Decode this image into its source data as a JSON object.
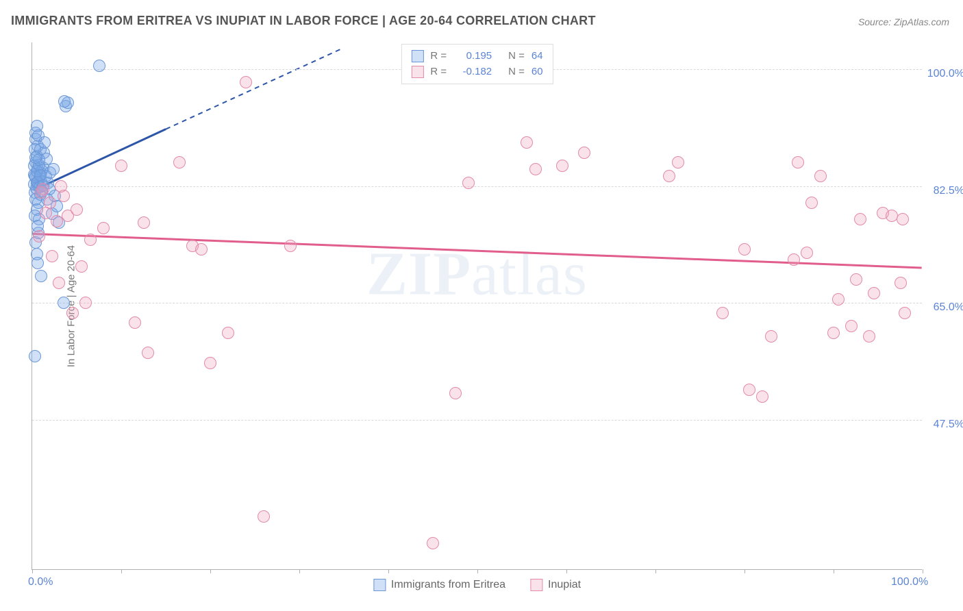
{
  "title": "IMMIGRANTS FROM ERITREA VS INUPIAT IN LABOR FORCE | AGE 20-64 CORRELATION CHART",
  "source": "Source: ZipAtlas.com",
  "y_axis_label": "In Labor Force | Age 20-64",
  "watermark_bold": "ZIP",
  "watermark_rest": "atlas",
  "chart": {
    "type": "scatter",
    "x_domain": [
      0,
      100
    ],
    "y_domain": [
      25,
      104
    ],
    "x_ticks": [
      0,
      10,
      20,
      30,
      40,
      50,
      60,
      70,
      80,
      90,
      100
    ],
    "x_tick_labels": {
      "0": "0.0%",
      "100": "100.0%"
    },
    "y_grid": [
      47.5,
      65.0,
      82.5,
      100.0
    ],
    "y_tick_labels": [
      "47.5%",
      "65.0%",
      "82.5%",
      "100.0%"
    ],
    "background": "#ffffff",
    "grid_color": "#d9d9d9",
    "axis_color": "#b0b0b0",
    "tick_label_color": "#5b84d6",
    "marker_radius": 9,
    "series": [
      {
        "name": "Immigrants from Eritrea",
        "fill": "rgba(120,165,230,0.35)",
        "stroke": "#6a97d8",
        "r_label": "R =",
        "r_value": "0.195",
        "n_label": "N =",
        "n_value": "64",
        "trend": {
          "x1": 0.4,
          "y1": 82,
          "x2": 15,
          "y2": 91,
          "extend_x2": 35,
          "extend_y2": 103.2,
          "color": "#2d56a8",
          "width": 3
        },
        "points": [
          {
            "x": 0.3,
            "y": 84
          },
          {
            "x": 0.5,
            "y": 83
          },
          {
            "x": 0.6,
            "y": 85
          },
          {
            "x": 0.8,
            "y": 83.5
          },
          {
            "x": 0.4,
            "y": 86
          },
          {
            "x": 0.7,
            "y": 82.5
          },
          {
            "x": 0.9,
            "y": 84.5
          },
          {
            "x": 1.0,
            "y": 83.2
          },
          {
            "x": 1.2,
            "y": 85.2
          },
          {
            "x": 0.3,
            "y": 81.5
          },
          {
            "x": 0.5,
            "y": 87
          },
          {
            "x": 0.6,
            "y": 88.5
          },
          {
            "x": 0.4,
            "y": 89.5
          },
          {
            "x": 0.7,
            "y": 80
          },
          {
            "x": 0.9,
            "y": 81.2
          },
          {
            "x": 0.5,
            "y": 79
          },
          {
            "x": 0.4,
            "y": 90.5
          },
          {
            "x": 0.2,
            "y": 85.5
          },
          {
            "x": 0.3,
            "y": 78
          },
          {
            "x": 0.8,
            "y": 77.5
          },
          {
            "x": 1.1,
            "y": 84.8
          },
          {
            "x": 0.2,
            "y": 82.8
          },
          {
            "x": 1.5,
            "y": 84
          },
          {
            "x": 1.8,
            "y": 83
          },
          {
            "x": 2.0,
            "y": 84.5
          },
          {
            "x": 2.2,
            "y": 78.3
          },
          {
            "x": 2.5,
            "y": 81
          },
          {
            "x": 0.5,
            "y": 72.3
          },
          {
            "x": 0.6,
            "y": 71
          },
          {
            "x": 1.0,
            "y": 69
          },
          {
            "x": 2.8,
            "y": 79.5
          },
          {
            "x": 3.0,
            "y": 77
          },
          {
            "x": 3.5,
            "y": 65
          },
          {
            "x": 0.3,
            "y": 57
          },
          {
            "x": 0.4,
            "y": 74
          },
          {
            "x": 0.7,
            "y": 75.5
          },
          {
            "x": 3.8,
            "y": 94.5
          },
          {
            "x": 4.0,
            "y": 95
          },
          {
            "x": 3.6,
            "y": 95.2
          },
          {
            "x": 7.5,
            "y": 100.5
          },
          {
            "x": 0.25,
            "y": 84.2
          },
          {
            "x": 0.35,
            "y": 83.8
          },
          {
            "x": 0.45,
            "y": 82.1
          },
          {
            "x": 0.55,
            "y": 84.7
          },
          {
            "x": 0.65,
            "y": 83.1
          },
          {
            "x": 0.75,
            "y": 85.6
          },
          {
            "x": 0.85,
            "y": 82.4
          },
          {
            "x": 0.95,
            "y": 84.1
          },
          {
            "x": 1.3,
            "y": 87.5
          },
          {
            "x": 1.6,
            "y": 86.6
          },
          {
            "x": 1.9,
            "y": 82
          },
          {
            "x": 0.5,
            "y": 91.5
          },
          {
            "x": 0.7,
            "y": 90
          },
          {
            "x": 0.3,
            "y": 88
          },
          {
            "x": 0.9,
            "y": 88
          },
          {
            "x": 1.4,
            "y": 89
          },
          {
            "x": 1.7,
            "y": 80.5
          },
          {
            "x": 2.4,
            "y": 85
          },
          {
            "x": 0.4,
            "y": 80.5
          },
          {
            "x": 0.6,
            "y": 76.5
          },
          {
            "x": 0.8,
            "y": 86.5
          },
          {
            "x": 1.05,
            "y": 81.7
          },
          {
            "x": 1.25,
            "y": 82.6
          },
          {
            "x": 0.35,
            "y": 86.8
          }
        ]
      },
      {
        "name": "Inupiat",
        "fill": "rgba(240,160,190,0.30)",
        "stroke": "#e28aa9",
        "r_label": "R =",
        "r_value": "-0.182",
        "n_label": "N =",
        "n_value": "60",
        "trend": {
          "x1": 0,
          "y1": 75.3,
          "x2": 100,
          "y2": 70.2,
          "color": "#e15d8b",
          "width": 3
        },
        "points": [
          {
            "x": 1.2,
            "y": 82
          },
          {
            "x": 2,
            "y": 80
          },
          {
            "x": 3.5,
            "y": 81
          },
          {
            "x": 5,
            "y": 79
          },
          {
            "x": 6.5,
            "y": 74.5
          },
          {
            "x": 8,
            "y": 76.2
          },
          {
            "x": 3,
            "y": 68
          },
          {
            "x": 4.5,
            "y": 63.5
          },
          {
            "x": 1.5,
            "y": 78.5
          },
          {
            "x": 2.8,
            "y": 77.2
          },
          {
            "x": 10,
            "y": 85.5
          },
          {
            "x": 12.5,
            "y": 77
          },
          {
            "x": 16.5,
            "y": 86
          },
          {
            "x": 18,
            "y": 73.5
          },
          {
            "x": 19,
            "y": 73
          },
          {
            "x": 24,
            "y": 98
          },
          {
            "x": 20,
            "y": 56
          },
          {
            "x": 22,
            "y": 60.5
          },
          {
            "x": 26,
            "y": 33
          },
          {
            "x": 29,
            "y": 73.5
          },
          {
            "x": 11.5,
            "y": 62
          },
          {
            "x": 13,
            "y": 57.5
          },
          {
            "x": 45,
            "y": 29
          },
          {
            "x": 47.5,
            "y": 51.5
          },
          {
            "x": 49,
            "y": 83
          },
          {
            "x": 55.5,
            "y": 89
          },
          {
            "x": 56.5,
            "y": 85
          },
          {
            "x": 59.5,
            "y": 85.5
          },
          {
            "x": 62,
            "y": 87.5
          },
          {
            "x": 71.5,
            "y": 84
          },
          {
            "x": 72.5,
            "y": 86
          },
          {
            "x": 77.5,
            "y": 63.5
          },
          {
            "x": 80,
            "y": 73
          },
          {
            "x": 80.5,
            "y": 52
          },
          {
            "x": 82,
            "y": 51
          },
          {
            "x": 83,
            "y": 60
          },
          {
            "x": 85.5,
            "y": 71.5
          },
          {
            "x": 86,
            "y": 86
          },
          {
            "x": 87.5,
            "y": 80
          },
          {
            "x": 87,
            "y": 72.5
          },
          {
            "x": 88.5,
            "y": 84
          },
          {
            "x": 90,
            "y": 60.5
          },
          {
            "x": 90.5,
            "y": 65.5
          },
          {
            "x": 92,
            "y": 61.5
          },
          {
            "x": 92.5,
            "y": 68.5
          },
          {
            "x": 93,
            "y": 77.5
          },
          {
            "x": 94,
            "y": 60
          },
          {
            "x": 94.5,
            "y": 66.5
          },
          {
            "x": 95.5,
            "y": 78.5
          },
          {
            "x": 96.5,
            "y": 78
          },
          {
            "x": 97.5,
            "y": 68
          },
          {
            "x": 97.8,
            "y": 77.5
          },
          {
            "x": 98,
            "y": 63.5
          },
          {
            "x": 6,
            "y": 65
          },
          {
            "x": 5.5,
            "y": 70.5
          },
          {
            "x": 0.8,
            "y": 75
          },
          {
            "x": 1.0,
            "y": 81.5
          },
          {
            "x": 2.2,
            "y": 72
          },
          {
            "x": 3.2,
            "y": 82.5
          },
          {
            "x": 4,
            "y": 78
          }
        ]
      }
    ]
  },
  "legend_bottom": [
    {
      "label": "Immigrants from Eritrea",
      "fill": "rgba(120,165,230,0.35)",
      "stroke": "#6a97d8"
    },
    {
      "label": "Inupiat",
      "fill": "rgba(240,160,190,0.30)",
      "stroke": "#e28aa9"
    }
  ]
}
